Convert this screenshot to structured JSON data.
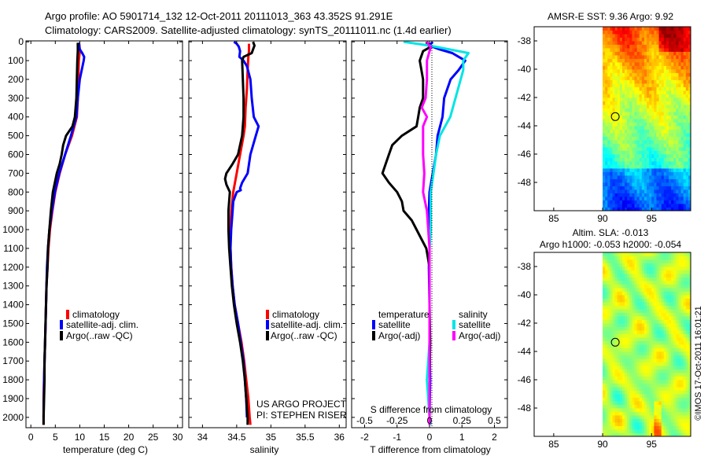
{
  "header": {
    "line1": "Argo profile: AO 5901714_132 12-Oct-2011 20111013_363 43.352S 91.291E",
    "line2": "Climatology: CARS2009. Satellite-adjusted climatology: synTS_20111011.nc (1.4d earlier)"
  },
  "colors": {
    "climatology": "#ff0000",
    "satellite": "#0000ff",
    "argo": "#000000",
    "sal_satellite": "#00e5e5",
    "sal_argo": "#ff00ff"
  },
  "chart_data": [
    {
      "type": "line",
      "id": "temperature",
      "xlabel": "temperature (deg C)",
      "xlim": [
        -1,
        31
      ],
      "xticks": [
        "0",
        "5",
        "10",
        "15",
        "20",
        "25",
        "30"
      ],
      "xtick_values": [
        0,
        5,
        10,
        15,
        20,
        25,
        30
      ],
      "ylim": [
        2050,
        0
      ],
      "yticks": [
        "0",
        "100",
        "200",
        "300",
        "400",
        "500",
        "600",
        "700",
        "800",
        "900",
        "1000",
        "1100",
        "1200",
        "1300",
        "1400",
        "1500",
        "1600",
        "1700",
        "1800",
        "1900",
        "2000"
      ],
      "ytick_values": [
        0,
        100,
        200,
        300,
        400,
        500,
        600,
        700,
        800,
        900,
        1000,
        1100,
        1200,
        1300,
        1400,
        1500,
        1600,
        1700,
        1800,
        1900,
        2000
      ],
      "legend": [
        "climatology",
        "satellite-adj. clim.",
        "Argo(..raw -QC)"
      ],
      "series": [
        {
          "name": "climatology",
          "color_key": "climatology",
          "depth": [
            10,
            50,
            100,
            200,
            300,
            400,
            500,
            600,
            700,
            800,
            900,
            1000,
            1100,
            1200,
            1300,
            1400,
            1500,
            1600,
            1700,
            1800,
            1900,
            2000,
            2040
          ],
          "values": [
            9.9,
            10.0,
            9.8,
            9.7,
            9.6,
            9.4,
            8.4,
            7.0,
            5.9,
            5.0,
            4.4,
            3.9,
            3.6,
            3.4,
            3.2,
            3.1,
            3.0,
            2.9,
            2.8,
            2.7,
            2.6,
            2.6,
            2.6
          ]
        },
        {
          "name": "satellite-adj. clim.",
          "color_key": "satellite",
          "depth": [
            5,
            20,
            40,
            60,
            80,
            100,
            150,
            200,
            250,
            300,
            400,
            500,
            600,
            700,
            800,
            900,
            1000,
            1100,
            1200,
            1400,
            1600,
            1800,
            2000
          ],
          "values": [
            9.7,
            9.9,
            10.0,
            10.5,
            10.9,
            10.8,
            10.4,
            10.0,
            9.8,
            9.6,
            9.3,
            8.2,
            7.0,
            5.8,
            4.9,
            4.3,
            3.8,
            3.5,
            3.3,
            3.1,
            2.9,
            2.7,
            2.6
          ]
        },
        {
          "name": "Argo(..raw -QC)",
          "color_key": "argo",
          "depth": [
            5,
            50,
            100,
            200,
            300,
            400,
            450,
            500,
            550,
            600,
            650,
            700,
            800,
            900,
            1000,
            1100,
            1200,
            1300,
            1400,
            1500,
            1600,
            1700,
            1800,
            1900,
            2000,
            2040
          ],
          "values": [
            9.6,
            9.6,
            9.5,
            9.4,
            9.3,
            9.0,
            8.5,
            7.2,
            6.6,
            6.3,
            5.9,
            5.3,
            4.5,
            4.1,
            3.8,
            3.5,
            3.4,
            3.2,
            3.1,
            3.0,
            2.9,
            2.8,
            2.8,
            2.7,
            2.6,
            2.6
          ]
        }
      ]
    },
    {
      "type": "line",
      "id": "salinity",
      "xlabel": "salinity",
      "xlim": [
        33.8,
        36.1
      ],
      "xticks": [
        "34",
        "34.5",
        "35",
        "35.5",
        "36"
      ],
      "xtick_values": [
        34,
        34.5,
        35,
        35.5,
        36
      ],
      "ylim": [
        2050,
        0
      ],
      "legend": [
        "climatology",
        "satellite-adj. clim.",
        "Argo(..raw -QC)"
      ],
      "annotation": [
        "US ARGO PROJECT",
        "PI: STEPHEN RISER"
      ],
      "series": [
        {
          "name": "climatology",
          "color_key": "climatology",
          "depth": [
            10,
            50,
            80,
            150,
            250,
            350,
            450,
            500,
            600,
            700,
            800,
            900,
            1000,
            1100,
            1200,
            1300,
            1400,
            1500,
            1600,
            1700,
            1800,
            1900,
            2000,
            2040
          ],
          "values": [
            34.68,
            34.68,
            34.67,
            34.66,
            34.65,
            34.63,
            34.62,
            34.6,
            34.55,
            34.5,
            34.45,
            34.42,
            34.41,
            34.41,
            34.42,
            34.44,
            34.47,
            34.52,
            34.57,
            34.61,
            34.64,
            34.67,
            34.69,
            34.7
          ]
        },
        {
          "name": "satellite-adj. clim.",
          "color_key": "satellite",
          "depth": [
            0,
            10,
            25,
            50,
            80,
            100,
            130,
            200,
            300,
            400,
            450,
            500,
            600,
            700,
            750,
            780,
            790,
            800,
            850,
            900,
            1000,
            1100,
            1200,
            1300,
            1400,
            1500,
            1600,
            1700,
            1800,
            1900,
            2000
          ],
          "values": [
            34.46,
            34.5,
            34.53,
            34.55,
            34.54,
            34.6,
            34.65,
            34.7,
            34.72,
            34.75,
            34.82,
            34.78,
            34.7,
            34.66,
            34.58,
            34.55,
            34.56,
            34.5,
            34.45,
            34.44,
            34.42,
            34.41,
            34.42,
            34.44,
            34.47,
            34.52,
            34.56,
            34.6,
            34.62,
            34.64,
            34.65
          ]
        },
        {
          "name": "Argo(..raw -QC)",
          "color_key": "argo",
          "depth": [
            0,
            10,
            20,
            40,
            60,
            80,
            100,
            200,
            300,
            400,
            500,
            600,
            650,
            700,
            730,
            760,
            800,
            900,
            1000,
            1100,
            1200,
            1300,
            1400,
            1500,
            1600,
            1700,
            1800,
            1900,
            2000,
            2040
          ],
          "values": [
            34.74,
            34.75,
            34.76,
            34.74,
            34.72,
            34.6,
            34.58,
            34.59,
            34.6,
            34.6,
            34.58,
            34.52,
            34.44,
            34.35,
            34.33,
            34.35,
            34.4,
            34.38,
            34.38,
            34.39,
            34.41,
            34.43,
            34.46,
            34.5,
            34.55,
            34.59,
            34.62,
            34.64,
            34.66,
            34.66
          ]
        }
      ]
    },
    {
      "type": "line",
      "id": "difference",
      "xlabel": "T difference from climatology",
      "xlabel_top": "S difference from climatology",
      "xlim": [
        -2.4,
        2.4
      ],
      "xticks": [
        "-2",
        "-1",
        "0",
        "1",
        "2"
      ],
      "xtick_values": [
        -2,
        -1,
        0,
        1,
        2
      ],
      "s_ticks": [
        "-0.5",
        "-0.25",
        "0",
        "0.25",
        "0.5"
      ],
      "s_tick_values": [
        -0.5,
        -0.25,
        0,
        0.25,
        0.5
      ],
      "ylim": [
        2050,
        0
      ],
      "legend": {
        "temperature_title": "temperature",
        "salinity_title": "salinity",
        "entries": [
          "satellite",
          "Argo(-adj)",
          "satellite",
          "Argo(-adj)"
        ]
      },
      "series": [
        {
          "name": "T satellite",
          "color_key": "satellite",
          "depth": [
            0,
            20,
            40,
            60,
            80,
            100,
            150,
            200,
            300,
            400,
            500,
            600,
            700,
            800,
            900,
            1000,
            1100,
            1200,
            1400,
            1600,
            1800,
            2000,
            2040
          ],
          "values": [
            0.1,
            0.0,
            0.3,
            0.7,
            0.9,
            1.1,
            0.9,
            0.65,
            0.45,
            0.4,
            0.25,
            0.2,
            0.1,
            0.0,
            -0.02,
            0.0,
            0.0,
            -0.02,
            0.0,
            0.0,
            0.02,
            0.0,
            0.0
          ]
        },
        {
          "name": "T Argo(-adj)",
          "color_key": "argo",
          "depth": [
            0,
            30,
            50,
            100,
            200,
            300,
            350,
            400,
            450,
            500,
            550,
            600,
            650,
            700,
            750,
            800,
            850,
            900,
            950,
            1000,
            1050,
            1100,
            1200,
            1400,
            1600,
            1800,
            2000,
            2040
          ],
          "values": [
            -0.1,
            0.0,
            -0.2,
            -0.3,
            -0.2,
            -0.2,
            -0.3,
            -0.35,
            -0.4,
            -0.85,
            -1.15,
            -1.25,
            -1.35,
            -1.45,
            -1.25,
            -1.0,
            -0.85,
            -0.8,
            -0.55,
            -0.4,
            -0.25,
            -0.1,
            0.0,
            0.0,
            0.02,
            0.0,
            0.0,
            0.0
          ]
        },
        {
          "name": "S satellite",
          "color_key": "sal_satellite",
          "depth": [
            0,
            20,
            40,
            60,
            100,
            150,
            200,
            300,
            400,
            500,
            600,
            700,
            800,
            900,
            1000,
            1100,
            1200,
            1400,
            1600,
            1800,
            2000,
            2040
          ],
          "values": [
            -0.2,
            0.0,
            0.15,
            0.3,
            0.26,
            0.26,
            0.24,
            0.2,
            0.16,
            0.08,
            0.05,
            0.03,
            0.01,
            0.01,
            0.01,
            0.0,
            0.0,
            0.0,
            0.0,
            -0.02,
            0.0,
            0.01
          ]
        },
        {
          "name": "S Argo(-adj)",
          "color_key": "sal_argo",
          "depth": [
            0,
            30,
            50,
            100,
            200,
            300,
            350,
            400,
            450,
            500,
            600,
            700,
            800,
            900,
            1000,
            1100,
            1200,
            1400,
            1600,
            1800,
            2000,
            2040
          ],
          "values": [
            -0.02,
            0.01,
            0.0,
            -0.02,
            -0.02,
            -0.03,
            -0.06,
            -0.02,
            -0.05,
            -0.05,
            -0.05,
            -0.04,
            -0.05,
            -0.02,
            -0.01,
            0.0,
            0.0,
            0.0,
            0.0,
            0.0,
            0.0,
            0.0
          ]
        }
      ]
    },
    {
      "type": "heatmap",
      "id": "sst_map",
      "title": "AMSR-E SST: 9.36 Argo: 9.92",
      "xlim": [
        83,
        99
      ],
      "ylim": [
        -50,
        -37
      ],
      "xticks": [
        "85",
        "90",
        "95"
      ],
      "xtick_values": [
        85,
        90,
        95
      ],
      "yticks": [
        "-38",
        "-40",
        "-42",
        "-44",
        "-46",
        "-48"
      ],
      "ytick_values": [
        -38,
        -40,
        -42,
        -44,
        -46,
        -48
      ],
      "data_lon_range": [
        90,
        99
      ],
      "argo_position": {
        "lon": 91.291,
        "lat": -43.352
      }
    },
    {
      "type": "heatmap",
      "id": "sla_map",
      "title": "Altim. SLA: -0.013",
      "subtitle": "Argo h1000: -0.053 h2000: -0.054",
      "xlim": [
        83,
        99
      ],
      "ylim": [
        -50,
        -37
      ],
      "xticks": [
        "85",
        "90",
        "95"
      ],
      "xtick_values": [
        85,
        90,
        95
      ],
      "yticks": [
        "-38",
        "-40",
        "-42",
        "-44",
        "-46",
        "-48"
      ],
      "ytick_values": [
        -38,
        -40,
        -42,
        -44,
        -46,
        -48
      ],
      "data_lon_range": [
        90,
        99
      ],
      "argo_position": {
        "lon": 91.291,
        "lat": -43.352
      }
    }
  ],
  "footer": {
    "credit": "©IMOS 17-Oct-2011 16:01:21"
  }
}
